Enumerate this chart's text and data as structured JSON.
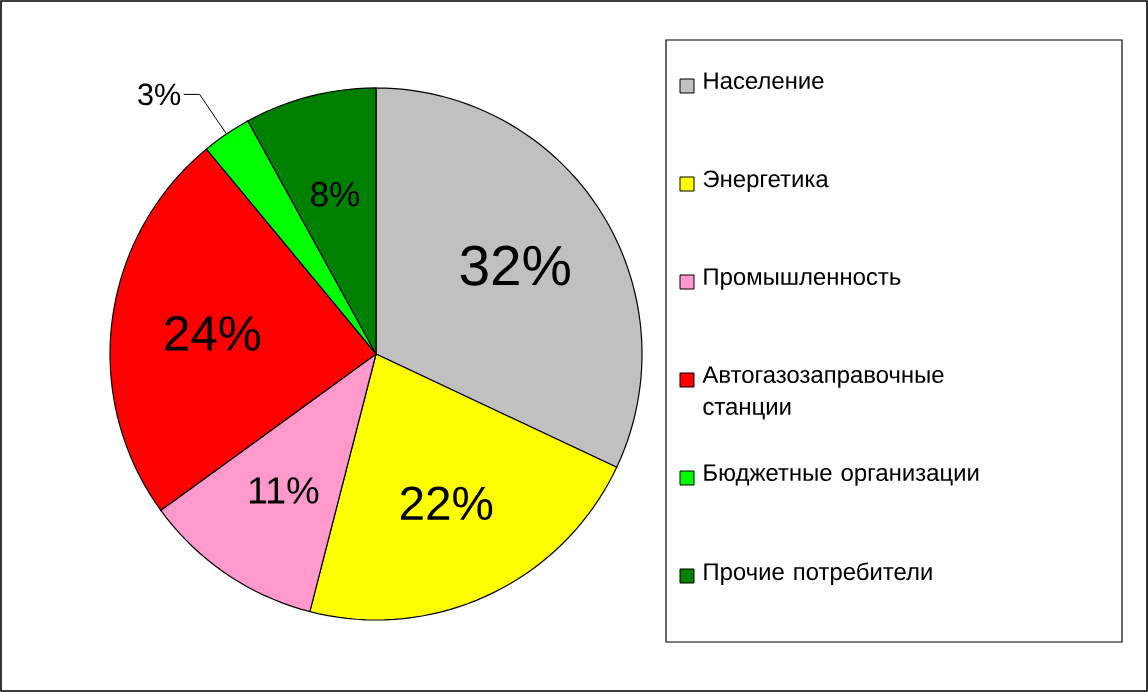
{
  "chart_data": {
    "type": "pie",
    "categories": [
      "Население",
      "Энергетика",
      "Промышленность",
      "Автогазозаправочные станции",
      "Бюджетные организации",
      "Прочие потребители"
    ],
    "values": [
      32,
      22,
      11,
      24,
      3,
      8
    ],
    "colors": [
      "#c0c0c0",
      "#ffff00",
      "#ff99cc",
      "#ff0000",
      "#00ff00",
      "#008000"
    ],
    "value_labels": [
      "32%",
      "22%",
      "11%",
      "24%",
      "3%",
      "8%"
    ],
    "legend": "right"
  }
}
